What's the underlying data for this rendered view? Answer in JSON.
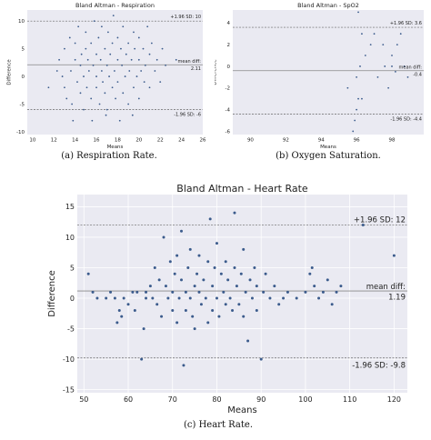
{
  "captions": {
    "a": "(a) Respiration Rate.",
    "b": "(b) Oxygen Saturation.",
    "c": "(c) Heart Rate."
  },
  "colors": {
    "point": "#3b5b8c",
    "plot_bg": "#eaeaf2",
    "line": "#888888"
  },
  "chart_data": [
    {
      "id": "resp",
      "type": "scatter",
      "title": "Bland Altman - Respiration",
      "xlabel": "Means",
      "ylabel": "Difference",
      "xlim": [
        9.5,
        26
      ],
      "ylim": [
        -10.5,
        12
      ],
      "xticks": [
        10,
        12,
        14,
        16,
        18,
        20,
        22,
        24,
        26
      ],
      "yticks": [
        -10,
        -5,
        0,
        5,
        10
      ],
      "upper_loa": 10,
      "mean_diff": 2.11,
      "lower_loa": -6,
      "label_upper": "+1.96 SD: 10",
      "label_mean": "mean diff:",
      "label_mean_value": "2.11",
      "label_lower": "-1.96 SD: -6",
      "grid": false,
      "points": [
        [
          11.5,
          -2
        ],
        [
          12.3,
          1
        ],
        [
          12.5,
          3
        ],
        [
          12.8,
          0
        ],
        [
          13,
          5
        ],
        [
          13,
          -2
        ],
        [
          13.2,
          -4
        ],
        [
          13.5,
          7
        ],
        [
          13.6,
          1
        ],
        [
          13.7,
          -5
        ],
        [
          13.8,
          -8
        ],
        [
          14,
          3
        ],
        [
          14,
          6
        ],
        [
          14.2,
          -1
        ],
        [
          14.3,
          9
        ],
        [
          14.5,
          2
        ],
        [
          14.5,
          -3
        ],
        [
          14.6,
          4
        ],
        [
          14.8,
          -6
        ],
        [
          14.8,
          0
        ],
        [
          15,
          5
        ],
        [
          15,
          8
        ],
        [
          15.1,
          -2
        ],
        [
          15.2,
          3
        ],
        [
          15.3,
          1
        ],
        [
          15.5,
          -4
        ],
        [
          15.5,
          6
        ],
        [
          15.6,
          -8
        ],
        [
          15.7,
          2
        ],
        [
          15.8,
          10
        ],
        [
          16,
          0
        ],
        [
          16,
          4
        ],
        [
          16,
          -2
        ],
        [
          16.2,
          7
        ],
        [
          16.3,
          -5
        ],
        [
          16.4,
          3
        ],
        [
          16.5,
          1
        ],
        [
          16.5,
          9
        ],
        [
          16.6,
          -1
        ],
        [
          16.8,
          5
        ],
        [
          16.8,
          -3
        ],
        [
          17,
          2
        ],
        [
          17,
          -6
        ],
        [
          17.1,
          8
        ],
        [
          17.2,
          0
        ],
        [
          17.3,
          4
        ],
        [
          17.5,
          -2
        ],
        [
          17.5,
          6
        ],
        [
          17.6,
          11
        ],
        [
          17.7,
          1
        ],
        [
          17.8,
          -4
        ],
        [
          18,
          3
        ],
        [
          18,
          7
        ],
        [
          18,
          -1
        ],
        [
          18.2,
          -8
        ],
        [
          18.3,
          5
        ],
        [
          18.4,
          2
        ],
        [
          18.5,
          9
        ],
        [
          18.5,
          -3
        ],
        [
          18.7,
          0
        ],
        [
          18.8,
          4
        ],
        [
          19,
          6
        ],
        [
          19,
          -5
        ],
        [
          19.1,
          1
        ],
        [
          19.3,
          3
        ],
        [
          19.5,
          8
        ],
        [
          19.5,
          -2
        ],
        [
          19.6,
          5
        ],
        [
          19.8,
          0
        ],
        [
          20,
          3
        ],
        [
          20,
          7
        ],
        [
          20,
          -4
        ],
        [
          20.2,
          1
        ],
        [
          20.4,
          5
        ],
        [
          20.5,
          -1
        ],
        [
          20.6,
          2
        ],
        [
          20.8,
          9
        ],
        [
          21,
          4
        ],
        [
          21,
          -2
        ],
        [
          21.2,
          6
        ],
        [
          21.5,
          1
        ],
        [
          21.7,
          3
        ],
        [
          22,
          -1
        ],
        [
          22.2,
          5
        ],
        [
          22.5,
          2
        ],
        [
          23.5,
          3
        ],
        [
          19.4,
          -7
        ],
        [
          16.9,
          -7
        ]
      ]
    },
    {
      "id": "spo2",
      "type": "scatter",
      "title": "Bland Altman - SpO2",
      "xlabel": "Means",
      "ylabel": "Difference",
      "xlim": [
        89,
        99.8
      ],
      "ylim": [
        -6.3,
        5.2
      ],
      "xticks": [
        90,
        92,
        94,
        96,
        98
      ],
      "yticks": [
        -6,
        -4,
        -2,
        0,
        2,
        4
      ],
      "upper_loa": 3.6,
      "mean_diff": -0.4,
      "lower_loa": -4.4,
      "label_upper": "+1.96 SD: 3.6",
      "label_mean": "mean diff:",
      "label_mean_value": "-0.4",
      "label_lower": "-1.96 SD: -4.4",
      "grid": false,
      "points": [
        [
          95.8,
          -6
        ],
        [
          95.9,
          -5
        ],
        [
          96,
          -4
        ],
        [
          96.1,
          -3
        ],
        [
          96.3,
          -3
        ],
        [
          95.5,
          -2
        ],
        [
          96,
          -1
        ],
        [
          96.2,
          0
        ],
        [
          96.5,
          1
        ],
        [
          96.8,
          2
        ],
        [
          96.3,
          3
        ],
        [
          97,
          3
        ],
        [
          97.5,
          2
        ],
        [
          97.2,
          -1
        ],
        [
          97.8,
          -2
        ],
        [
          98,
          0
        ],
        [
          98,
          1
        ],
        [
          98.3,
          2
        ],
        [
          98.5,
          3
        ],
        [
          98.7,
          0
        ],
        [
          98.9,
          -1
        ],
        [
          96.1,
          5
        ],
        [
          97.6,
          0
        ],
        [
          98.2,
          -0.5
        ]
      ]
    },
    {
      "id": "hr",
      "type": "scatter",
      "title": "Bland Altman - Heart Rate",
      "xlabel": "Means",
      "ylabel": "Difference",
      "xlim": [
        48.5,
        123
      ],
      "ylim": [
        -15.5,
        17
      ],
      "xticks": [
        50,
        60,
        70,
        80,
        90,
        100,
        110,
        120
      ],
      "yticks": [
        -15,
        -10,
        -5,
        0,
        5,
        10,
        15
      ],
      "upper_loa": 12,
      "mean_diff": 1.19,
      "lower_loa": -9.8,
      "label_upper": "+1.96 SD: 12",
      "label_mean": "mean diff:",
      "label_mean_value": "1.19",
      "label_lower": "-1.96 SD: -9.8",
      "grid": true,
      "points": [
        [
          51,
          4
        ],
        [
          52,
          1
        ],
        [
          53,
          0
        ],
        [
          55,
          0
        ],
        [
          56,
          1
        ],
        [
          57,
          0
        ],
        [
          57.5,
          -4
        ],
        [
          58,
          -2
        ],
        [
          58.5,
          -3
        ],
        [
          59,
          0
        ],
        [
          60,
          -1
        ],
        [
          61,
          1
        ],
        [
          61.5,
          -2
        ],
        [
          62,
          1
        ],
        [
          63,
          -10
        ],
        [
          63.5,
          -5
        ],
        [
          64,
          0
        ],
        [
          64,
          1
        ],
        [
          65,
          2
        ],
        [
          65.5,
          0
        ],
        [
          66,
          5
        ],
        [
          66.5,
          -1
        ],
        [
          67,
          3
        ],
        [
          67.5,
          -3
        ],
        [
          68,
          10
        ],
        [
          68.5,
          2
        ],
        [
          69,
          0
        ],
        [
          69.5,
          6
        ],
        [
          70,
          -2
        ],
        [
          70,
          1
        ],
        [
          70.5,
          4
        ],
        [
          71,
          7
        ],
        [
          71,
          -4
        ],
        [
          71.5,
          0
        ],
        [
          72,
          11
        ],
        [
          72,
          3
        ],
        [
          72.5,
          -11
        ],
        [
          73,
          1
        ],
        [
          73,
          -2
        ],
        [
          73.5,
          5
        ],
        [
          74,
          0
        ],
        [
          74,
          8
        ],
        [
          74.5,
          -3
        ],
        [
          75,
          2
        ],
        [
          75,
          -5
        ],
        [
          75.5,
          4
        ],
        [
          76,
          1
        ],
        [
          76,
          7
        ],
        [
          76.5,
          -1
        ],
        [
          77,
          3
        ],
        [
          77.5,
          0
        ],
        [
          78,
          6
        ],
        [
          78,
          -4
        ],
        [
          78.5,
          13
        ],
        [
          79,
          2
        ],
        [
          79,
          -2
        ],
        [
          79.5,
          5
        ],
        [
          80,
          0
        ],
        [
          80,
          9
        ],
        [
          80.5,
          -3
        ],
        [
          81,
          4
        ],
        [
          81.5,
          1
        ],
        [
          82,
          -1
        ],
        [
          82,
          6
        ],
        [
          82.5,
          3
        ],
        [
          83,
          0
        ],
        [
          83.5,
          -2
        ],
        [
          84,
          14
        ],
        [
          84,
          5
        ],
        [
          84.5,
          2
        ],
        [
          85,
          -1
        ],
        [
          85.5,
          4
        ],
        [
          86,
          8
        ],
        [
          86,
          -3
        ],
        [
          86.5,
          1
        ],
        [
          87,
          -7
        ],
        [
          87.5,
          3
        ],
        [
          88,
          0
        ],
        [
          88.5,
          5
        ],
        [
          89,
          -2
        ],
        [
          89,
          2
        ],
        [
          90,
          -10
        ],
        [
          90.5,
          1
        ],
        [
          91,
          4
        ],
        [
          92,
          0
        ],
        [
          93,
          2
        ],
        [
          94,
          -1
        ],
        [
          95,
          0
        ],
        [
          96,
          1
        ],
        [
          98,
          0
        ],
        [
          100,
          1
        ],
        [
          101,
          4
        ],
        [
          101.5,
          5
        ],
        [
          102,
          2
        ],
        [
          103,
          0
        ],
        [
          104,
          1
        ],
        [
          105,
          3
        ],
        [
          106,
          -1
        ],
        [
          107,
          1
        ],
        [
          108,
          2
        ],
        [
          113,
          12
        ],
        [
          120,
          7
        ]
      ]
    }
  ]
}
